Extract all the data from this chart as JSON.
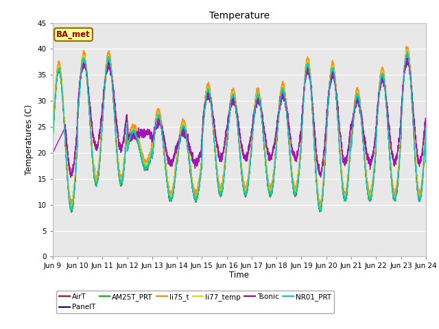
{
  "title": "Temperature",
  "xlabel": "Time",
  "ylabel": "Temperatures (C)",
  "xlim": [
    0,
    15
  ],
  "ylim": [
    0,
    45
  ],
  "yticks": [
    0,
    5,
    10,
    15,
    20,
    25,
    30,
    35,
    40,
    45
  ],
  "xtick_labels": [
    "Jun 9",
    "Jun 10",
    "Jun 11",
    "Jun 12",
    "Jun 13",
    "Jun 14",
    "Jun 15",
    "Jun 16",
    "Jun 17",
    "Jun 18",
    "Jun 19",
    "Jun 20",
    "Jun 21",
    "Jun 22",
    "Jun 23",
    "Jun 24"
  ],
  "bg_color": "#e8e8e8",
  "legend_entries": [
    "AirT",
    "PanelT",
    "AM25T_PRT",
    "li75_t",
    "li77_temp",
    "Tsonic",
    "NR01_PRT"
  ],
  "legend_colors": [
    "#cc0000",
    "#000099",
    "#00bb00",
    "#ff8800",
    "#dddd00",
    "#9900aa",
    "#00cccc"
  ],
  "line_widths": [
    1.0,
    1.0,
    1.0,
    1.0,
    1.0,
    1.0,
    1.0
  ],
  "annotation_text": "BA_met",
  "annotation_bbox_color": "#ffff99",
  "annotation_text_color": "#990000",
  "annotation_border_color": "#996600",
  "figsize": [
    6.4,
    4.8
  ],
  "dpi": 100
}
